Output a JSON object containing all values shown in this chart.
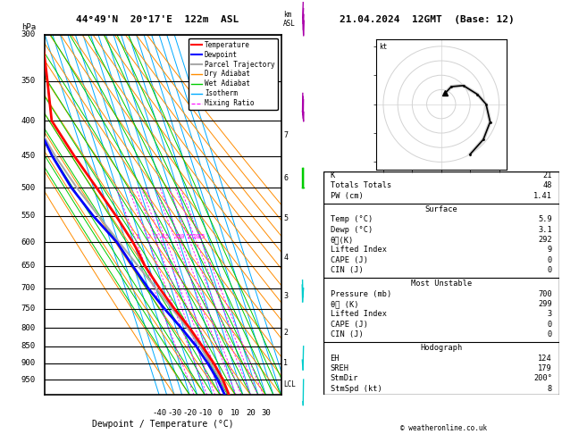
{
  "title_left": "44°49'N  20°17'E  122m  ASL",
  "title_right": "21.04.2024  12GMT  (Base: 12)",
  "xlabel": "Dewpoint / Temperature (°C)",
  "pressure_levels": [
    300,
    350,
    400,
    450,
    500,
    550,
    600,
    650,
    700,
    750,
    800,
    850,
    900,
    950
  ],
  "p_min": 300,
  "p_max": 1000,
  "t_min": -40,
  "t_max": 35,
  "isotherm_color": "#00AAFF",
  "dry_adiabat_color": "#FF8C00",
  "wet_adiabat_color": "#00CC00",
  "mixing_ratio_color": "#FF00FF",
  "mixing_ratio_values": [
    1,
    2,
    3,
    4,
    5,
    8,
    10,
    15,
    20,
    25
  ],
  "temp_profile_p": [
    1000,
    950,
    900,
    850,
    800,
    750,
    700,
    650,
    620,
    600,
    550,
    500,
    450,
    400,
    350,
    300
  ],
  "temp_profile_t": [
    5.9,
    5.0,
    2.5,
    -1.5,
    -6.0,
    -12.0,
    -17.5,
    -22.5,
    -24.0,
    -25.5,
    -31.0,
    -38.0,
    -46.0,
    -53.5,
    -48.0,
    -42.0
  ],
  "dewp_profile_p": [
    1000,
    950,
    900,
    850,
    800,
    750,
    700,
    650,
    600,
    550,
    500,
    450,
    400,
    350,
    300
  ],
  "dewp_profile_t": [
    3.1,
    1.5,
    -1.5,
    -5.5,
    -11.5,
    -18.5,
    -25.0,
    -30.5,
    -36.0,
    -46.0,
    -54.5,
    -60.5,
    -64.5,
    -53.5,
    -46.5
  ],
  "parcel_profile_p": [
    1000,
    950,
    900,
    850,
    800,
    750,
    700,
    650,
    600,
    550,
    500,
    450,
    400,
    350,
    300
  ],
  "parcel_profile_t": [
    5.9,
    3.5,
    0.5,
    -3.0,
    -7.5,
    -13.5,
    -20.0,
    -27.0,
    -34.5,
    -42.5,
    -51.0,
    -58.5,
    -64.5,
    -55.0,
    -47.5
  ],
  "lcl_p": 965,
  "temp_color": "#FF0000",
  "dewp_color": "#0000FF",
  "parcel_color": "#AAAAAA",
  "km_ticks": [
    1,
    2,
    3,
    4,
    5,
    6,
    7
  ],
  "km_pressures": [
    900,
    812,
    718,
    632,
    554,
    484,
    420
  ],
  "wind_barb_pressures": [
    950,
    850,
    700,
    500,
    400,
    300
  ],
  "wind_directions_deg": [
    200,
    210,
    240,
    270,
    290,
    310
  ],
  "wind_speeds_kt": [
    8,
    12,
    20,
    30,
    35,
    40
  ],
  "wind_colors": [
    "#00CCCC",
    "#00CCCC",
    "#00CCCC",
    "#00CC00",
    "#AA00AA",
    "#AA00AA"
  ],
  "indices_K": "21",
  "indices_TT": "48",
  "indices_PW": "1.41",
  "indices_Temp": "5.9",
  "indices_Dewp": "3.1",
  "indices_thetae_s": "292",
  "indices_LI_s": "9",
  "indices_CAPE_s": "0",
  "indices_CIN_s": "0",
  "indices_Pmu": "700",
  "indices_thetae_mu": "299",
  "indices_LI_mu": "3",
  "indices_CAPE_mu": "0",
  "indices_CIN_mu": "0",
  "indices_EH": "124",
  "indices_SREH": "179",
  "indices_StmDir": "200°",
  "indices_StmSpd": "8",
  "hodo_wind_dirs": [
    200,
    210,
    230,
    255,
    270,
    290,
    310,
    330
  ],
  "hodo_wind_spds": [
    8,
    14,
    20,
    26,
    31,
    36,
    38,
    40
  ],
  "copyright": "© weatheronline.co.uk"
}
